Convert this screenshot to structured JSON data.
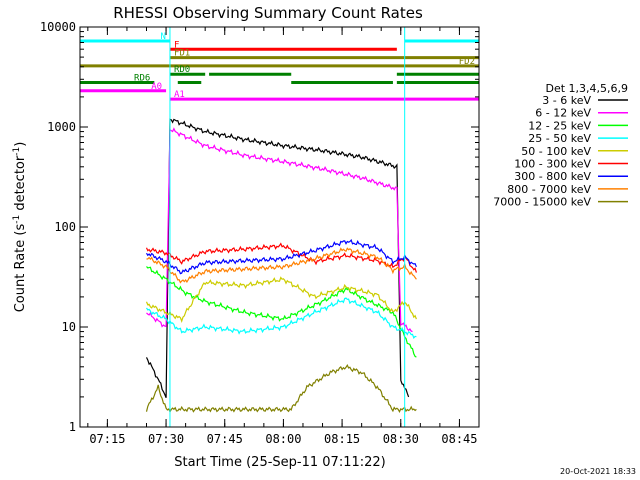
{
  "chart_data": {
    "type": "line",
    "title": "RHESSI Observing Summary Count Rates",
    "xlabel": "Start Time (25-Sep-11 07:11:22)",
    "ylabel_main": "Count Rate (s",
    "ylabel_sup1": "-1",
    "ylabel_mid": " detector",
    "ylabel_sup2": "-1",
    "ylabel_end": ")",
    "y_scale": "log",
    "ylim": [
      1,
      10000
    ],
    "xlim": [
      "07:08",
      "08:50"
    ],
    "x_ticks": [
      "07:15",
      "07:30",
      "07:45",
      "08:00",
      "08:15",
      "08:30",
      "08:45"
    ],
    "y_ticks": [
      "1",
      "10",
      "100",
      "1000",
      "10000"
    ],
    "legend_title": "Det 1,3,4,5,6,9",
    "legend_position": "right",
    "timestamp": "20-Oct-2021 18:33",
    "flag_bars": [
      {
        "label": "N",
        "color": "#00ffff",
        "segments": [
          [
            "07:08",
            "07:31"
          ],
          [
            "08:31",
            "08:50"
          ]
        ]
      },
      {
        "label": "F",
        "color": "#ff0000",
        "segments": [
          [
            "07:31",
            "08:29"
          ]
        ]
      },
      {
        "label": "FD1",
        "color": "#808000",
        "segments": [
          [
            "07:31",
            "08:50"
          ]
        ]
      },
      {
        "label": "FD2",
        "color": "#808000",
        "segments": [
          [
            "07:08",
            "08:50"
          ]
        ]
      },
      {
        "label": "RD0",
        "color": "#008000",
        "segments": [
          [
            "07:31",
            "07:40"
          ],
          [
            "07:41",
            "08:02"
          ],
          [
            "08:29",
            "08:50"
          ]
        ]
      },
      {
        "label": "RD6",
        "color": "#008000",
        "segments": [
          [
            "07:08",
            "07:27"
          ],
          [
            "07:33",
            "07:39"
          ],
          [
            "08:02",
            "08:28"
          ],
          [
            "08:29",
            "08:50"
          ]
        ]
      },
      {
        "label": "A0",
        "color": "#ff00ff",
        "segments": [
          [
            "07:08",
            "07:30"
          ]
        ]
      },
      {
        "label": "A1",
        "color": "#ff00ff",
        "segments": [
          [
            "07:31",
            "08:50"
          ]
        ]
      }
    ],
    "series": [
      {
        "name": "3 - 6 keV",
        "color": "#000000",
        "x": [
          "07:25",
          "07:28",
          "07:30",
          "07:31",
          "07:40",
          "07:50",
          "08:00",
          "08:10",
          "08:20",
          "08:29",
          "08:30",
          "08:32"
        ],
        "y": [
          5,
          3,
          2,
          1200,
          900,
          750,
          650,
          580,
          500,
          400,
          3,
          2
        ]
      },
      {
        "name": "6 - 12 keV",
        "color": "#ff00ff",
        "x": [
          "07:25",
          "07:30",
          "07:31",
          "07:40",
          "07:50",
          "08:00",
          "08:10",
          "08:20",
          "08:29",
          "08:30",
          "08:33"
        ],
        "y": [
          14,
          10,
          950,
          650,
          520,
          450,
          380,
          310,
          240,
          11,
          9
        ]
      },
      {
        "name": "12 - 25 keV",
        "color": "#00ff00",
        "x": [
          "07:25",
          "07:30",
          "07:35",
          "07:40",
          "07:50",
          "08:00",
          "08:10",
          "08:16",
          "08:22",
          "08:28",
          "08:31",
          "08:34"
        ],
        "y": [
          40,
          30,
          22,
          18,
          14,
          12,
          18,
          24,
          18,
          14,
          8,
          5
        ]
      },
      {
        "name": "25 - 50 keV",
        "color": "#00ffff",
        "x": [
          "07:25",
          "07:30",
          "07:34",
          "07:40",
          "07:50",
          "08:00",
          "08:08",
          "08:16",
          "08:24",
          "08:28",
          "08:31",
          "08:34"
        ],
        "y": [
          15,
          12,
          9,
          10,
          9,
          10,
          14,
          19,
          14,
          10,
          9,
          8
        ]
      },
      {
        "name": "50 - 100 keV",
        "color": "#cccc00",
        "x": [
          "07:25",
          "07:30",
          "07:34",
          "07:40",
          "07:50",
          "08:00",
          "08:08",
          "08:16",
          "08:24",
          "08:28",
          "08:31",
          "08:34"
        ],
        "y": [
          17,
          14,
          12,
          28,
          26,
          30,
          20,
          25,
          21,
          14,
          18,
          12
        ]
      },
      {
        "name": "100 - 300 keV",
        "color": "#ff0000",
        "x": [
          "07:25",
          "07:30",
          "07:34",
          "07:40",
          "07:50",
          "08:00",
          "08:08",
          "08:16",
          "08:24",
          "08:28",
          "08:31",
          "08:34"
        ],
        "y": [
          60,
          55,
          45,
          57,
          60,
          65,
          45,
          52,
          46,
          40,
          50,
          35
        ]
      },
      {
        "name": "300 - 800 keV",
        "color": "#0000ff",
        "x": [
          "07:25",
          "07:30",
          "07:34",
          "07:40",
          "07:50",
          "08:00",
          "08:08",
          "08:16",
          "08:24",
          "08:28",
          "08:31",
          "08:34"
        ],
        "y": [
          55,
          45,
          35,
          44,
          46,
          48,
          58,
          72,
          62,
          45,
          50,
          40
        ]
      },
      {
        "name": "800 - 7000 keV",
        "color": "#ff8000",
        "x": [
          "07:25",
          "07:30",
          "07:34",
          "07:40",
          "07:50",
          "08:00",
          "08:08",
          "08:16",
          "08:24",
          "08:28",
          "08:31",
          "08:34"
        ],
        "y": [
          50,
          40,
          28,
          36,
          38,
          40,
          48,
          60,
          50,
          37,
          40,
          30
        ]
      },
      {
        "name": "7000 - 15000 keV",
        "color": "#808000",
        "x": [
          "07:25",
          "07:28",
          "07:30",
          "08:02",
          "08:06",
          "08:12",
          "08:16",
          "08:20",
          "08:24",
          "08:28",
          "08:31",
          "08:34"
        ],
        "y": [
          1.5,
          2.5,
          1.5,
          1.5,
          2.5,
          3.5,
          4,
          3.5,
          2.5,
          1.5,
          1.5,
          1.5
        ]
      }
    ]
  }
}
